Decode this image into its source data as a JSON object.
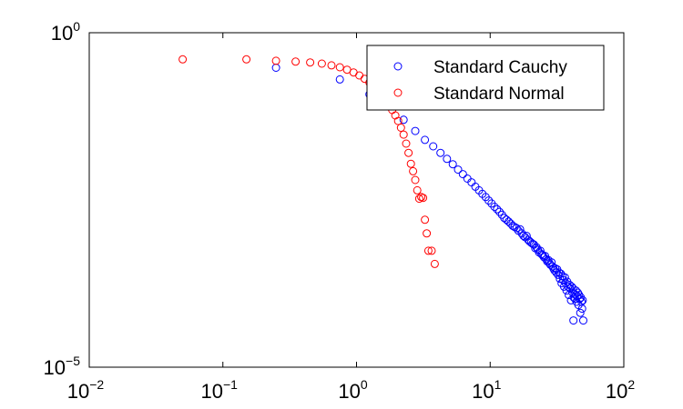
{
  "chart_data": {
    "type": "scatter",
    "title": "",
    "xlabel": "",
    "ylabel": "",
    "x_scale": "log",
    "y_scale": "log",
    "xlim": [
      0.01,
      100
    ],
    "ylim": [
      1e-05,
      1
    ],
    "grid": false,
    "legend_position": "top-right",
    "x_ticks": [
      {
        "value": 0.01,
        "base": "10",
        "exp": "−2"
      },
      {
        "value": 0.1,
        "base": "10",
        "exp": "−1"
      },
      {
        "value": 1,
        "base": "10",
        "exp": "0"
      },
      {
        "value": 10,
        "base": "10",
        "exp": "1"
      },
      {
        "value": 100,
        "base": "10",
        "exp": "2"
      }
    ],
    "y_ticks": [
      {
        "value": 1e-05,
        "base": "10",
        "exp": "−5"
      },
      {
        "value": 1,
        "base": "10",
        "exp": "0"
      }
    ],
    "series": [
      {
        "name": "Standard Cauchy",
        "color": "#0000ff",
        "marker": "circle-open",
        "points": [
          [
            0.25,
            0.3
          ],
          [
            0.75,
            0.2
          ],
          [
            1.25,
            0.12
          ],
          [
            1.75,
            0.08
          ],
          [
            2.25,
            0.05
          ],
          [
            2.75,
            0.034
          ],
          [
            3.25,
            0.025
          ],
          [
            3.75,
            0.02
          ],
          [
            4.25,
            0.016
          ],
          [
            4.75,
            0.013
          ],
          [
            5.25,
            0.0108
          ],
          [
            5.75,
            0.009
          ],
          [
            6.25,
            0.0077
          ],
          [
            6.75,
            0.0066
          ],
          [
            7.25,
            0.0058
          ],
          [
            7.75,
            0.005
          ],
          [
            8.25,
            0.0044
          ],
          [
            8.75,
            0.0039
          ],
          [
            9.25,
            0.0035
          ],
          [
            9.75,
            0.0031
          ],
          [
            10.25,
            0.0028
          ],
          [
            10.75,
            0.0025
          ],
          [
            11.25,
            0.0023
          ],
          [
            11.75,
            0.0021
          ],
          [
            12.25,
            0.0019
          ],
          [
            12.75,
            0.0017
          ],
          [
            13.25,
            0.0016
          ],
          [
            13.75,
            0.0015
          ],
          [
            14.25,
            0.0014
          ],
          [
            14.75,
            0.0013
          ],
          [
            15.25,
            0.00125
          ],
          [
            15.75,
            0.0012
          ],
          [
            16.25,
            0.0011
          ],
          [
            16.75,
            0.00115
          ],
          [
            17.25,
            0.001
          ],
          [
            17.75,
            0.00092
          ],
          [
            18.25,
            0.00088
          ],
          [
            18.75,
            0.00092
          ],
          [
            19.25,
            0.0008
          ],
          [
            19.75,
            0.00076
          ],
          [
            20.25,
            0.00073
          ],
          [
            20.75,
            0.0007
          ],
          [
            21.25,
            0.00068
          ],
          [
            21.75,
            0.0006
          ],
          [
            22.25,
            0.00062
          ],
          [
            22.75,
            0.00057
          ],
          [
            23.25,
            0.00052
          ],
          [
            23.75,
            0.00055
          ],
          [
            24.25,
            0.00049
          ],
          [
            24.75,
            0.00047
          ],
          [
            25.25,
            0.00044
          ],
          [
            25.75,
            0.00046
          ],
          [
            26.25,
            0.00041
          ],
          [
            26.75,
            0.00038
          ],
          [
            27.25,
            0.0004
          ],
          [
            27.75,
            0.00036
          ],
          [
            28.25,
            0.00034
          ],
          [
            28.75,
            0.00037
          ],
          [
            29.25,
            0.00032
          ],
          [
            29.75,
            0.0003
          ],
          [
            30.25,
            0.00028
          ],
          [
            30.75,
            0.0003
          ],
          [
            31.25,
            0.00026
          ],
          [
            31.75,
            0.00029
          ],
          [
            32.25,
            0.00024
          ],
          [
            32.75,
            0.00026
          ],
          [
            33.25,
            0.00021
          ],
          [
            33.75,
            0.00025
          ],
          [
            34.25,
            0.00018
          ],
          [
            34.75,
            0.00023
          ],
          [
            35.25,
            0.0002
          ],
          [
            35.75,
            0.00016
          ],
          [
            36.25,
            0.00022
          ],
          [
            36.75,
            0.00018
          ],
          [
            37.25,
            0.00014
          ],
          [
            37.75,
            0.00019
          ],
          [
            38.25,
            0.00016
          ],
          [
            38.75,
            0.00012
          ],
          [
            39.25,
            0.00017
          ],
          [
            39.75,
            0.00015
          ],
          [
            40.25,
            0.0001
          ],
          [
            40.75,
            0.00016
          ],
          [
            41.25,
            0.00013
          ],
          [
            41.75,
            0.00015
          ],
          [
            42.25,
            0.00011
          ],
          [
            42.75,
            0.000125
          ],
          [
            43.25,
            0.000105
          ],
          [
            43.75,
            0.00014
          ],
          [
            44.25,
            9.5e-05
          ],
          [
            44.75,
            0.000115
          ],
          [
            45.25,
            0.00013
          ],
          [
            45.75,
            8.5e-05
          ],
          [
            46.25,
            0.00012
          ],
          [
            46.75,
            0.000105
          ],
          [
            47.25,
            6.5e-05
          ],
          [
            47.75,
            0.00011
          ],
          [
            48.25,
            9.5e-05
          ],
          [
            48.75,
            7.5e-05
          ],
          [
            49.25,
            0.0001
          ],
          [
            49.75,
            5e-05
          ],
          [
            42.0,
            5e-05
          ]
        ]
      },
      {
        "name": "Standard Normal",
        "color": "#ff0000",
        "marker": "circle-open",
        "points": [
          [
            0.05,
            0.4
          ],
          [
            0.15,
            0.4
          ],
          [
            0.25,
            0.38
          ],
          [
            0.35,
            0.37
          ],
          [
            0.45,
            0.36
          ],
          [
            0.55,
            0.345
          ],
          [
            0.65,
            0.325
          ],
          [
            0.75,
            0.305
          ],
          [
            0.85,
            0.28
          ],
          [
            0.95,
            0.255
          ],
          [
            1.05,
            0.23
          ],
          [
            1.15,
            0.205
          ],
          [
            1.25,
            0.18
          ],
          [
            1.35,
            0.16
          ],
          [
            1.45,
            0.14
          ],
          [
            1.55,
            0.12
          ],
          [
            1.65,
            0.1
          ],
          [
            1.75,
            0.085
          ],
          [
            1.85,
            0.07
          ],
          [
            1.95,
            0.058
          ],
          [
            2.05,
            0.048
          ],
          [
            2.15,
            0.038
          ],
          [
            2.25,
            0.03
          ],
          [
            2.35,
            0.022
          ],
          [
            2.45,
            0.016
          ],
          [
            2.55,
            0.011
          ],
          [
            2.65,
            0.0085
          ],
          [
            2.75,
            0.0063
          ],
          [
            2.85,
            0.0044
          ],
          [
            2.95,
            0.0033
          ],
          [
            3.05,
            0.0035
          ],
          [
            3.15,
            0.0034
          ],
          [
            3.25,
            0.0016
          ],
          [
            3.35,
            0.001
          ],
          [
            3.45,
            0.00055
          ],
          [
            3.65,
            0.00055
          ],
          [
            3.85,
            0.00035
          ]
        ]
      }
    ]
  }
}
